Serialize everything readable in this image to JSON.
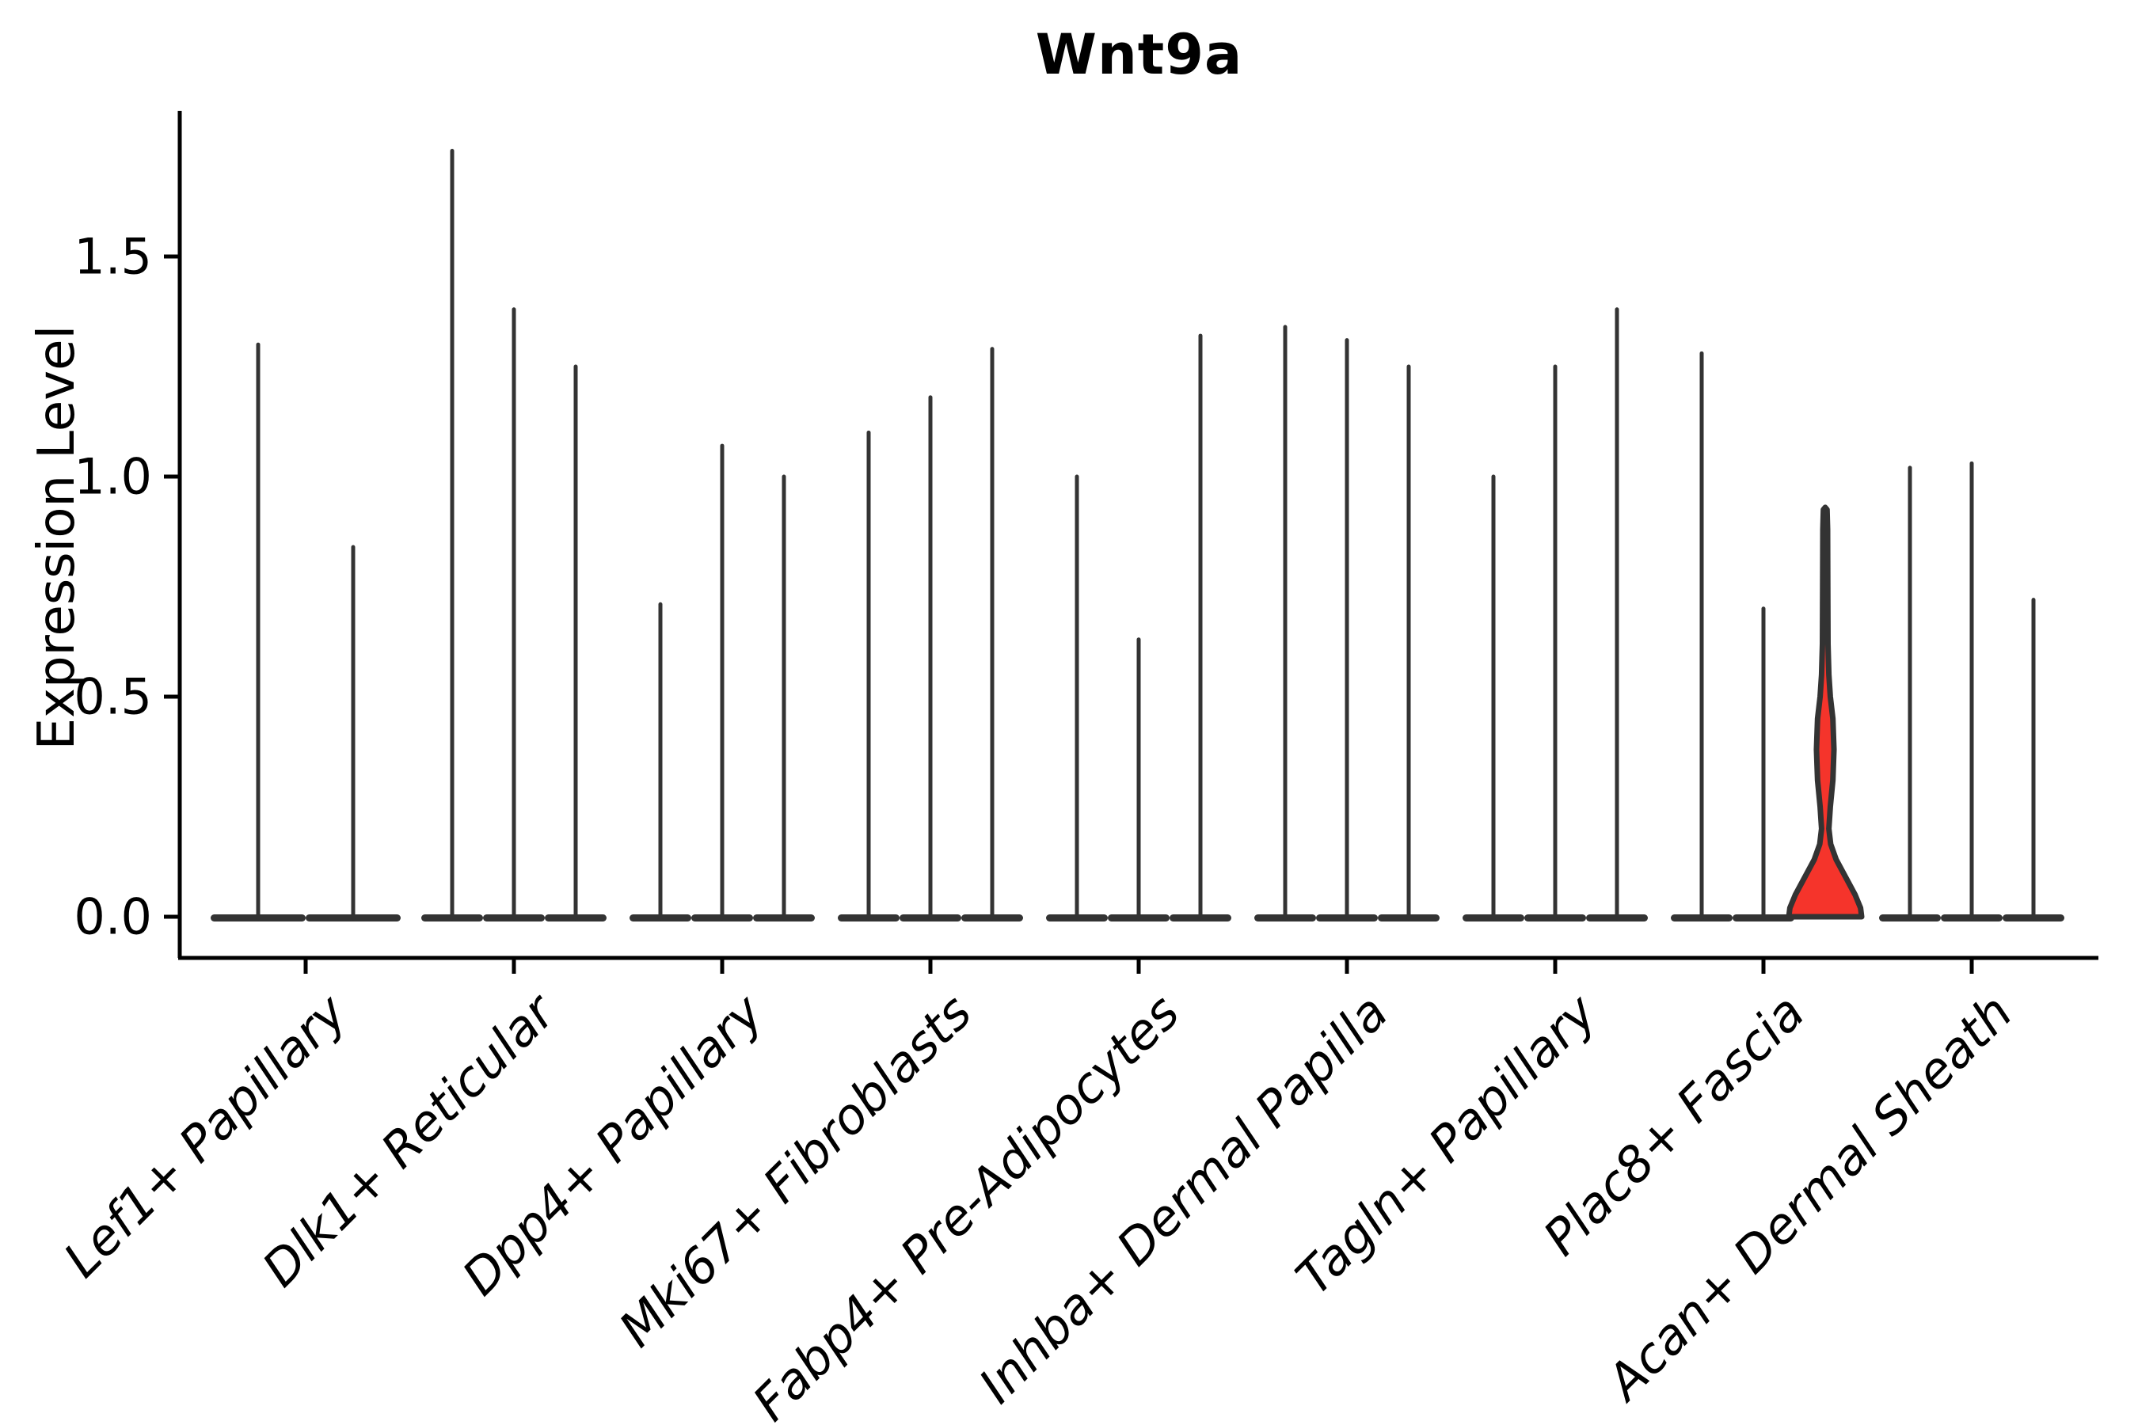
{
  "title": "Wnt9a",
  "ylabel": "Expression Level",
  "yticks": [
    {
      "label": "0.0",
      "value": 0.0
    },
    {
      "label": "0.5",
      "value": 0.5
    },
    {
      "label": "1.0",
      "value": 1.0
    },
    {
      "label": "1.5",
      "value": 1.5
    }
  ],
  "colors": {
    "violin_edge": "#333333",
    "highlight_fill": "#f5342b",
    "axis": "#000000",
    "background": "#ffffff",
    "text": "#000000"
  },
  "chart_data": {
    "type": "violin",
    "title": "Wnt9a",
    "xlabel": "",
    "ylabel": "Expression Level",
    "ylim": [
      -0.09,
      1.84
    ],
    "grid": false,
    "legend": "none",
    "description": "Stacked-violin style expression plot; each cell-type category holds narrow spike-like violins (most cells at 0 with thin tails up to the max). One violin (Plac8+ Fascia, third) is highlighted red with a visible density bulge.",
    "categories": [
      "Lef1+ Papillary",
      "Dlk1+ Reticular",
      "Dpp4+ Papillary",
      "Mki67+ Fibroblasts",
      "Fabp4+ Pre-Adipocytes",
      "Inhba+ Dermal Papilla",
      "Tagln+ Papillary",
      "Plac8+ Fascia",
      "Acan+ Dermal Sheath"
    ],
    "series": [
      {
        "category": "Lef1+ Papillary",
        "violin_max_values": [
          1.3,
          0.84
        ]
      },
      {
        "category": "Dlk1+ Reticular",
        "violin_max_values": [
          1.74,
          1.38,
          1.25
        ]
      },
      {
        "category": "Dpp4+ Papillary",
        "violin_max_values": [
          0.71,
          1.07,
          1.0
        ]
      },
      {
        "category": "Mki67+ Fibroblasts",
        "violin_max_values": [
          1.1,
          1.18,
          1.29
        ]
      },
      {
        "category": "Fabp4+ Pre-Adipocytes",
        "violin_max_values": [
          1.0,
          0.63,
          1.32
        ]
      },
      {
        "category": "Inhba+ Dermal Papilla",
        "violin_max_values": [
          1.34,
          1.31,
          1.25
        ]
      },
      {
        "category": "Tagln+ Papillary",
        "violin_max_values": [
          1.0,
          1.25,
          1.38
        ]
      },
      {
        "category": "Plac8+ Fascia",
        "violin_max_values": [
          1.28,
          0.7,
          0.93
        ],
        "highlighted_violin_index": 2
      },
      {
        "category": "Acan+ Dermal Sheath",
        "violin_max_values": [
          1.02,
          1.03,
          0.72
        ]
      }
    ],
    "highlighted_violin": {
      "category": "Plac8+ Fascia",
      "index_in_category": 2,
      "max": 0.93,
      "fill": "#f5342b",
      "density_profile_value_halfwidth": [
        [
          0.0,
          1.0
        ],
        [
          0.02,
          0.97
        ],
        [
          0.05,
          0.82
        ],
        [
          0.09,
          0.56
        ],
        [
          0.13,
          0.3
        ],
        [
          0.165,
          0.15
        ],
        [
          0.2,
          0.1
        ],
        [
          0.25,
          0.14
        ],
        [
          0.31,
          0.21
        ],
        [
          0.38,
          0.24
        ],
        [
          0.45,
          0.21
        ],
        [
          0.5,
          0.14
        ],
        [
          0.55,
          0.1
        ],
        [
          0.62,
          0.076
        ],
        [
          0.75,
          0.07
        ],
        [
          0.88,
          0.065
        ],
        [
          0.925,
          0.05
        ],
        [
          0.93,
          0.0
        ]
      ]
    }
  }
}
